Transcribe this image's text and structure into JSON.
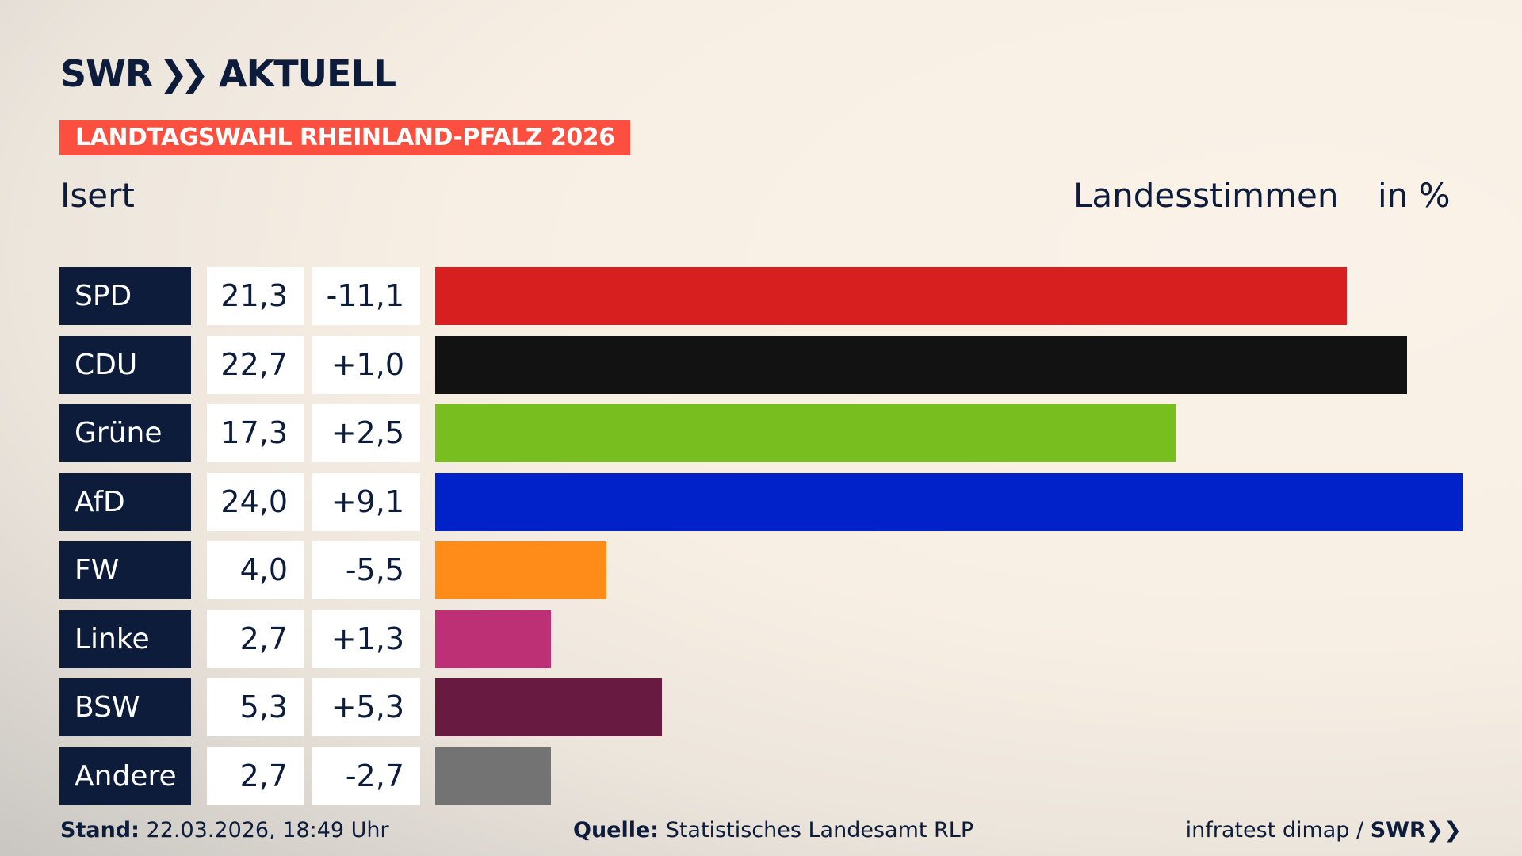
{
  "header": {
    "logo": "SWR AKTUELL",
    "banner": "LANDTAGSWAHL RHEINLAND-PFALZ 2026",
    "subtitle": "Isert",
    "measure": "Landesstimmen",
    "unit": "in %"
  },
  "chart_data": {
    "type": "bar",
    "orientation": "horizontal",
    "categories": [
      "SPD",
      "CDU",
      "Grüne",
      "AfD",
      "FW",
      "Linke",
      "BSW",
      "Andere"
    ],
    "values": [
      21.3,
      22.7,
      17.3,
      24.0,
      4.0,
      2.7,
      5.3,
      2.7
    ],
    "value_labels": [
      "21,3",
      "22,7",
      "17,3",
      "24,0",
      "4,0",
      "2,7",
      "5,3",
      "2,7"
    ],
    "diff_labels": [
      "-11,1",
      "+1,0",
      "+2,5",
      "+9,1",
      "-5,5",
      "+1,3",
      "+5,3",
      "-2,7"
    ],
    "colors": [
      "#d81f1f",
      "#121212",
      "#78be1e",
      "#0022c8",
      "#ff8c19",
      "#be3075",
      "#691a40",
      "#737373"
    ],
    "xlim": [
      0,
      24.0
    ],
    "grid": false
  },
  "footer": {
    "stand_label": "Stand:",
    "stand_value": "22.03.2026, 18:49 Uhr",
    "source_label": "Quelle:",
    "source_value": "Statistisches Landesamt RLP",
    "credit": "infratest dimap /",
    "credit_logo": "SWR"
  }
}
